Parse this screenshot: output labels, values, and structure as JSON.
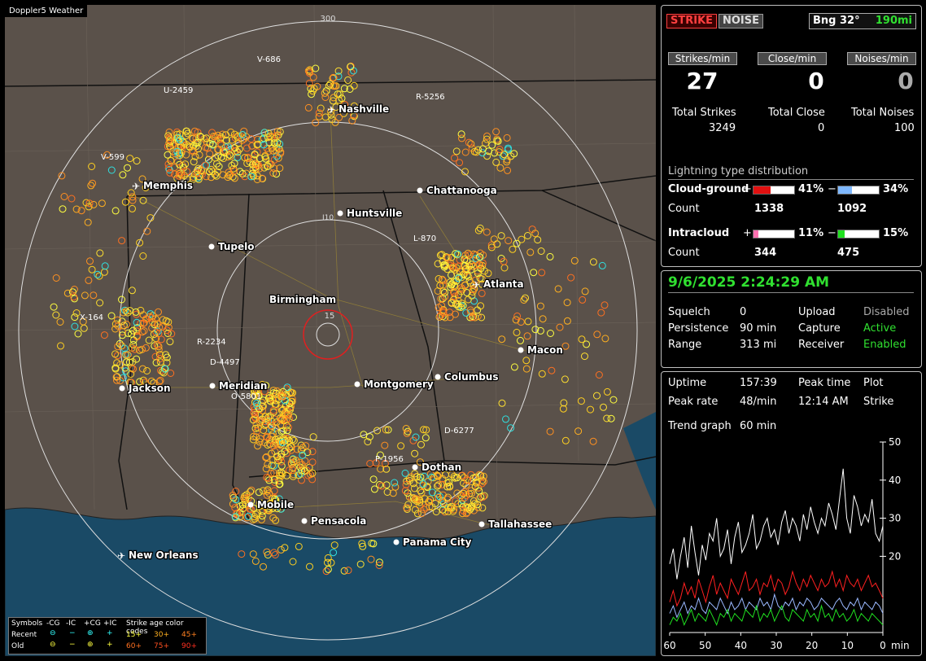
{
  "app": {
    "title": "Doppler5 Weather"
  },
  "map": {
    "ring_labels": [
      "300",
      "15"
    ],
    "cities": [
      {
        "name": "Nashville",
        "airport": true
      },
      {
        "name": "Memphis",
        "airport": true
      },
      {
        "name": "Chattanooga",
        "airport": false
      },
      {
        "name": "Huntsville",
        "airport": false
      },
      {
        "name": "Tupelo",
        "airport": false
      },
      {
        "name": "Atlanta",
        "airport": true
      },
      {
        "name": "Birmingham",
        "airport": false
      },
      {
        "name": "Macon",
        "airport": false
      },
      {
        "name": "Jackson",
        "airport": false
      },
      {
        "name": "Meridian",
        "airport": false
      },
      {
        "name": "Montgomery",
        "airport": false
      },
      {
        "name": "Columbus",
        "airport": false
      },
      {
        "name": "Dothan",
        "airport": false
      },
      {
        "name": "Mobile",
        "airport": false
      },
      {
        "name": "Pensacola",
        "airport": false
      },
      {
        "name": "Tallahassee",
        "airport": false
      },
      {
        "name": "Panama City",
        "airport": false
      },
      {
        "name": "New Orleans",
        "airport": true
      }
    ],
    "cells": [
      "V-686",
      "U-2459",
      "R-5256",
      "V-599",
      "L-870",
      "X-164",
      "R-2234",
      "D-4497",
      "O-5801",
      "D-6277",
      "P-1956"
    ],
    "road": "I10"
  },
  "legend": {
    "symbols_label": "Symbols",
    "cols": [
      "-CG",
      "-IC",
      "+CG",
      "+IC"
    ],
    "recent_label": "Recent",
    "old_label": "Old",
    "age_title": "Strike age color codes",
    "recent_ages": [
      "15+",
      "30+",
      "45+"
    ],
    "old_ages": [
      "60+",
      "75+",
      "90+"
    ]
  },
  "status": {
    "strike_label": "STRIKE",
    "noise_label": "NOISE",
    "bearing": "Bng 32°",
    "range": "190mi",
    "rate_labels": [
      "Strikes/min",
      "Close/min",
      "Noises/min"
    ],
    "rates": [
      "27",
      "0",
      "0"
    ],
    "total_labels": [
      "Total Strikes",
      "Total Close",
      "Total Noises"
    ],
    "totals": [
      "3249",
      "0",
      "100"
    ],
    "dist_title": "Lightning type distribution",
    "cg_label": "Cloud-ground",
    "ic_label": "Intracloud",
    "count_label": "Count",
    "cg_pos_pct": "41%",
    "cg_neg_pct": "34%",
    "ic_pos_pct": "11%",
    "ic_neg_pct": "15%",
    "cg_pos_count": "1338",
    "cg_neg_count": "1092",
    "ic_pos_count": "344",
    "ic_neg_count": "475",
    "cg_pos_frac": 0.41,
    "cg_neg_frac": 0.34,
    "ic_pos_frac": 0.11,
    "ic_neg_frac": 0.15
  },
  "settings": {
    "datetime": "9/6/2025 2:24:29 AM",
    "squelch_label": "Squelch",
    "squelch": "0",
    "persistence_label": "Persistence",
    "persistence": "90 min",
    "range_label": "Range",
    "range": "313 mi",
    "upload_label": "Upload",
    "upload": "Disabled",
    "capture_label": "Capture",
    "capture": "Active",
    "receiver_label": "Receiver",
    "receiver": "Enabled"
  },
  "stats": {
    "uptime_label": "Uptime",
    "uptime": "157:39",
    "peaktime_label": "Peak time",
    "peaktime": "12:14 AM",
    "plot_label": "Plot",
    "plot": "Strike",
    "peakrate_label": "Peak rate",
    "peakrate": "48/min",
    "trend_label": "Trend graph",
    "trend": "60 min"
  },
  "chart_data": {
    "type": "line",
    "x_unit": "min",
    "x_ticks": [
      "60",
      "50",
      "40",
      "30",
      "20",
      "10",
      "0"
    ],
    "y_ticks": [
      "50",
      "40",
      "30",
      "20"
    ],
    "xlim": [
      60,
      0
    ],
    "ylim": [
      0,
      50
    ],
    "series_colors": [
      "#ffffff",
      "#ff2020",
      "#9ab8ff",
      "#20e020"
    ],
    "series": [
      {
        "values": [
          18,
          22,
          14,
          20,
          25,
          17,
          28,
          21,
          15,
          23,
          19,
          26,
          24,
          30,
          20,
          22,
          27,
          18,
          25,
          29,
          21,
          23,
          26,
          31,
          22,
          24,
          28,
          30,
          25,
          27,
          23,
          29,
          32,
          26,
          30,
          28,
          24,
          31,
          27,
          33,
          29,
          26,
          30,
          28,
          34,
          31,
          27,
          35,
          43,
          30,
          26,
          36,
          33,
          28,
          31,
          29,
          35,
          26,
          24,
          28
        ]
      },
      {
        "values": [
          8,
          11,
          7,
          9,
          13,
          10,
          12,
          9,
          14,
          11,
          8,
          12,
          15,
          10,
          13,
          11,
          9,
          14,
          12,
          10,
          13,
          16,
          11,
          12,
          14,
          10,
          13,
          12,
          15,
          11,
          14,
          13,
          10,
          12,
          16,
          13,
          11,
          14,
          12,
          15,
          13,
          11,
          14,
          12,
          13,
          16,
          12,
          14,
          11,
          15,
          13,
          12,
          14,
          11,
          13,
          15,
          12,
          13,
          11,
          9
        ]
      },
      {
        "values": [
          5,
          7,
          4,
          6,
          8,
          5,
          7,
          6,
          9,
          6,
          5,
          8,
          7,
          6,
          9,
          7,
          5,
          8,
          6,
          7,
          9,
          6,
          8,
          7,
          6,
          9,
          7,
          8,
          6,
          10,
          7,
          6,
          8,
          7,
          9,
          6,
          8,
          7,
          9,
          8,
          6,
          7,
          9,
          8,
          7,
          6,
          8,
          9,
          7,
          6,
          8,
          7,
          9,
          6,
          8,
          7,
          6,
          8,
          7,
          5
        ]
      },
      {
        "values": [
          2,
          4,
          3,
          5,
          2,
          4,
          6,
          3,
          5,
          4,
          3,
          6,
          4,
          2,
          5,
          4,
          6,
          3,
          5,
          4,
          3,
          6,
          5,
          4,
          7,
          3,
          5,
          4,
          6,
          3,
          5,
          7,
          4,
          3,
          6,
          5,
          4,
          3,
          6,
          4,
          5,
          3,
          7,
          4,
          5,
          3,
          6,
          4,
          5,
          3,
          4,
          6,
          3,
          5,
          4,
          3,
          5,
          4,
          3,
          2
        ]
      }
    ]
  }
}
